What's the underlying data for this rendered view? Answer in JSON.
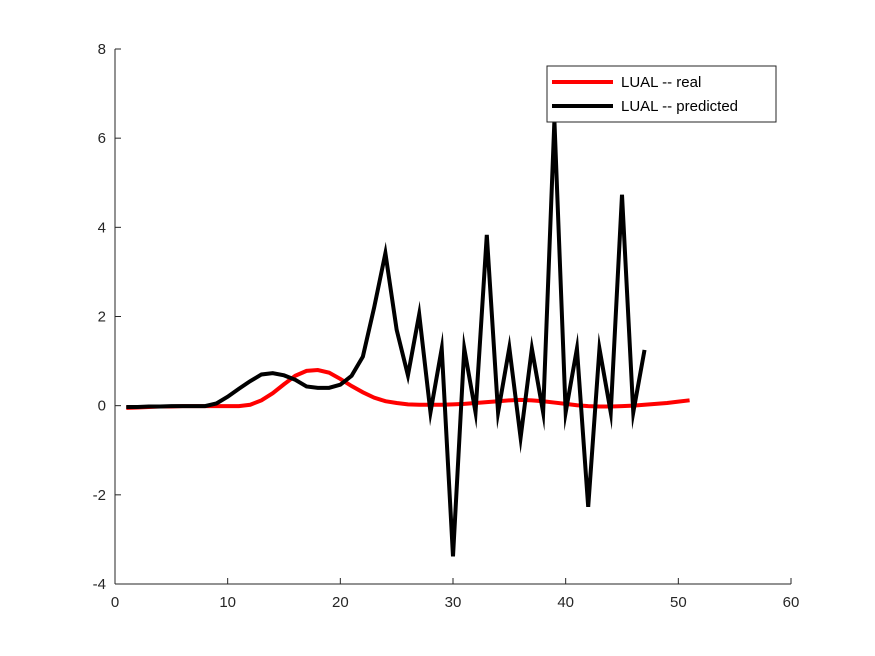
{
  "chart_data": {
    "type": "line",
    "title": "",
    "xlabel": "",
    "ylabel": "",
    "xlim": [
      0,
      60
    ],
    "ylim": [
      -4,
      8
    ],
    "xticks": [
      0,
      10,
      20,
      30,
      40,
      50,
      60
    ],
    "yticks": [
      -4,
      -2,
      0,
      2,
      4,
      6,
      8
    ],
    "grid": false,
    "legend_position": "top-right",
    "series": [
      {
        "name": "LUAL -- real",
        "color": "#ff0000",
        "x": [
          1,
          2,
          3,
          4,
          5,
          6,
          7,
          8,
          9,
          10,
          11,
          12,
          13,
          14,
          15,
          16,
          17,
          18,
          19,
          20,
          21,
          22,
          23,
          24,
          25,
          26,
          27,
          28,
          29,
          30,
          31,
          32,
          33,
          34,
          35,
          36,
          37,
          38,
          39,
          40,
          41,
          42,
          43,
          44,
          45,
          46,
          47,
          48,
          49,
          50,
          51
        ],
        "y": [
          -0.05,
          -0.04,
          -0.03,
          -0.02,
          -0.02,
          -0.01,
          -0.01,
          -0.01,
          -0.01,
          -0.01,
          -0.01,
          0.02,
          0.12,
          0.28,
          0.48,
          0.67,
          0.78,
          0.8,
          0.74,
          0.6,
          0.44,
          0.3,
          0.18,
          0.1,
          0.06,
          0.03,
          0.02,
          0.02,
          0.02,
          0.03,
          0.04,
          0.06,
          0.08,
          0.1,
          0.12,
          0.13,
          0.12,
          0.1,
          0.07,
          0.04,
          0.01,
          -0.01,
          -0.02,
          -0.02,
          -0.01,
          0.0,
          0.02,
          0.04,
          0.06,
          0.09,
          0.12
        ]
      },
      {
        "name": "LUAL -- predicted",
        "color": "#000000",
        "x": [
          1,
          2,
          3,
          4,
          5,
          6,
          7,
          8,
          9,
          10,
          11,
          12,
          13,
          14,
          15,
          16,
          17,
          18,
          19,
          20,
          21,
          22,
          23,
          24,
          25,
          26,
          27,
          28,
          29,
          30,
          31,
          32,
          33,
          34,
          35,
          36,
          37,
          38,
          39,
          40,
          41,
          42,
          43,
          44,
          45,
          46,
          47
        ],
        "y": [
          -0.03,
          -0.03,
          -0.02,
          -0.02,
          -0.01,
          -0.01,
          -0.01,
          -0.01,
          0.05,
          0.2,
          0.38,
          0.55,
          0.7,
          0.73,
          0.68,
          0.58,
          0.43,
          0.4,
          0.4,
          0.47,
          0.67,
          1.1,
          2.2,
          3.42,
          1.7,
          0.68,
          2.05,
          -0.15,
          1.28,
          -3.38,
          1.28,
          -0.15,
          3.83,
          -0.15,
          1.3,
          -0.72,
          1.28,
          -0.15,
          6.4,
          -0.15,
          1.28,
          -2.27,
          1.28,
          -0.15,
          4.73,
          -0.15,
          1.25
        ]
      }
    ]
  }
}
